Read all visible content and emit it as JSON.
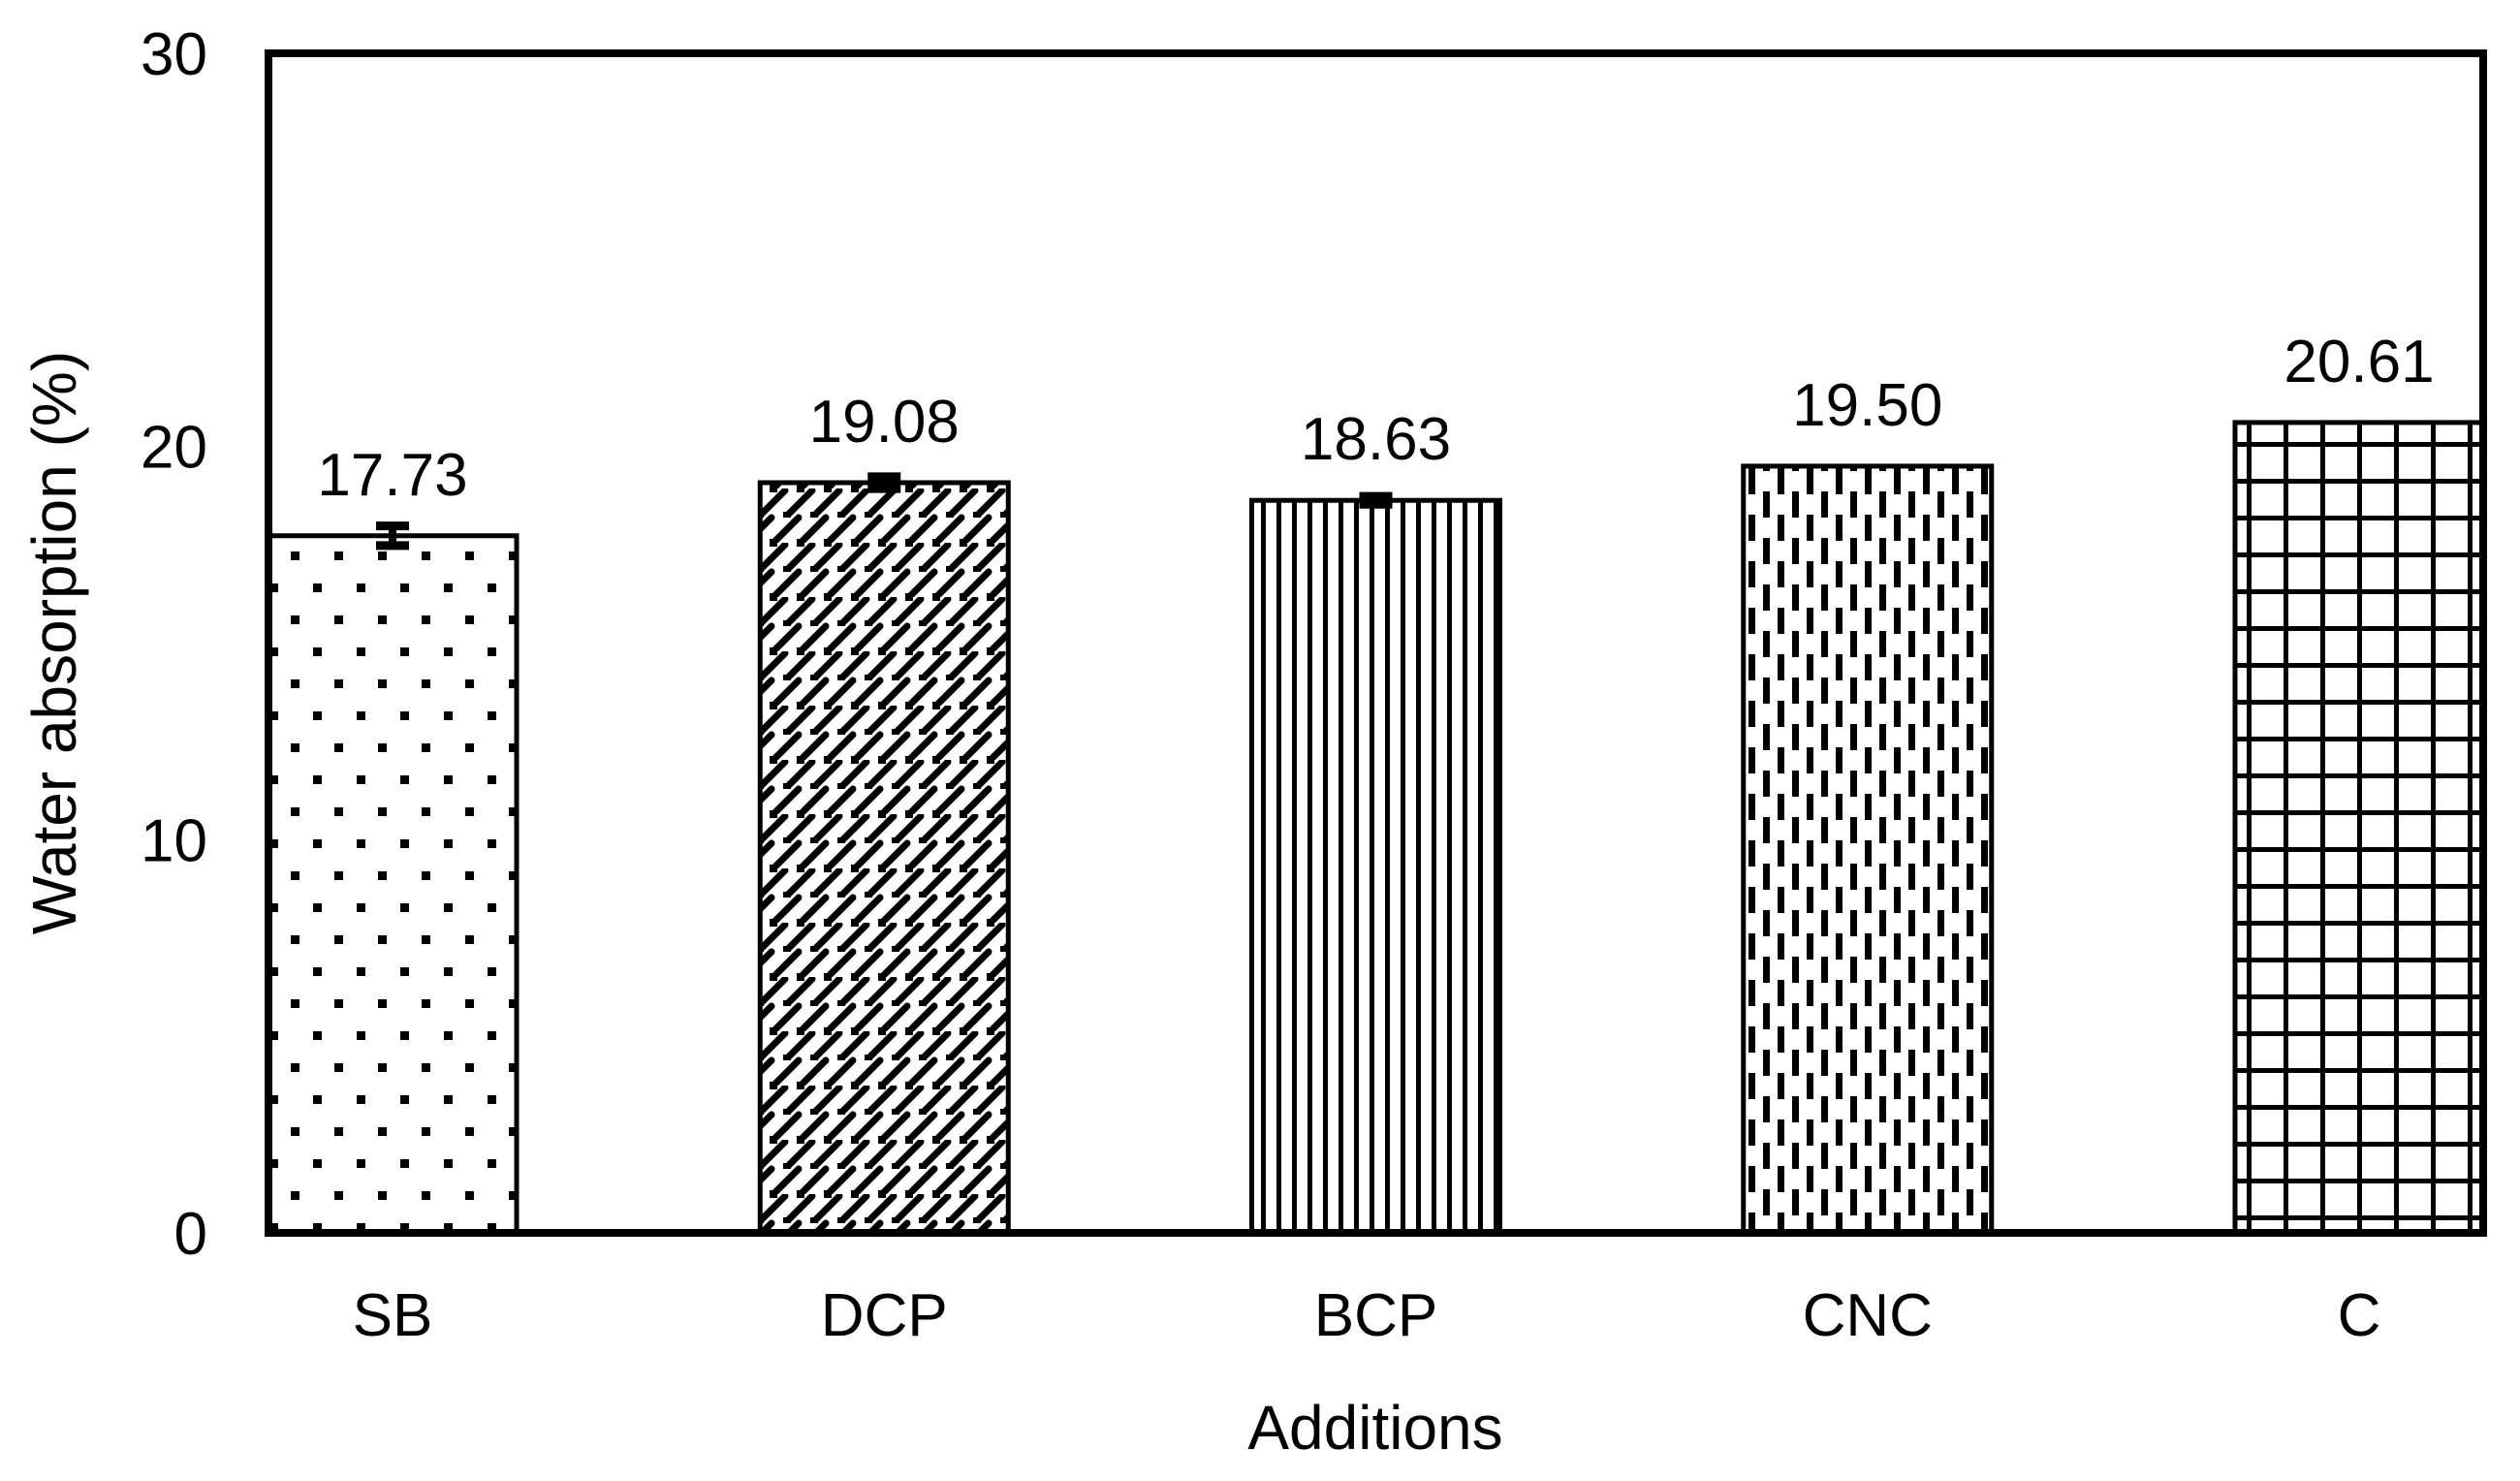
{
  "chart_data": {
    "type": "bar",
    "title": "",
    "xlabel": "Additions",
    "ylabel": "Water absorption (%)",
    "categories": [
      "SB",
      "DCP",
      "BCP",
      "CNC",
      "C"
    ],
    "values": [
      17.73,
      19.08,
      18.63,
      19.5,
      20.61
    ],
    "value_labels": [
      "17.73",
      "19.08",
      "18.63",
      "19.50",
      "20.61"
    ],
    "error_bars": [
      0.25,
      0.15,
      0.1,
      0,
      0
    ],
    "patterns": [
      "dots",
      "weave",
      "vlines",
      "vdash",
      "grid"
    ],
    "ylim": [
      0,
      30
    ],
    "yticks": [
      "0",
      "10",
      "20",
      "30"
    ],
    "ytick_values": [
      0,
      10,
      20,
      30
    ],
    "grid": false,
    "legend": "none",
    "colors": {
      "ink": "#000000",
      "background": "#ffffff",
      "bar_fill": "#ffffff"
    }
  }
}
